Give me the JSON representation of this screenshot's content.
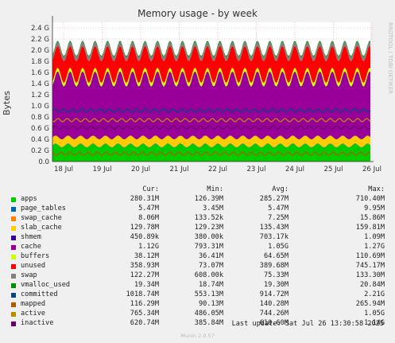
{
  "chart_data": {
    "type": "area",
    "title": "Memory usage - by week",
    "ylabel": "Bytes",
    "watermark": "RRDTOOL / TOBI OETIKER",
    "ylim": [
      0,
      2.5
    ],
    "y_unit": "G",
    "yticks": [
      {
        "value": 0.0,
        "label": "0.0"
      },
      {
        "value": 0.2,
        "label": "0.2 G"
      },
      {
        "value": 0.4,
        "label": "0.4 G"
      },
      {
        "value": 0.6,
        "label": "0.6 G"
      },
      {
        "value": 0.8,
        "label": "0.8 G"
      },
      {
        "value": 1.0,
        "label": "1.0 G"
      },
      {
        "value": 1.2,
        "label": "1.2 G"
      },
      {
        "value": 1.4,
        "label": "1.4 G"
      },
      {
        "value": 1.6,
        "label": "1.6 G"
      },
      {
        "value": 1.8,
        "label": "1.8 G"
      },
      {
        "value": 2.0,
        "label": "2.0 G"
      },
      {
        "value": 2.2,
        "label": "2.2 G"
      },
      {
        "value": 2.4,
        "label": "2.4 G"
      }
    ],
    "x_categories": [
      "18 Jul",
      "19 Jul",
      "20 Jul",
      "21 Jul",
      "22 Jul",
      "23 Jul",
      "24 Jul",
      "25 Jul",
      "26 Jul"
    ],
    "grid": true,
    "legend_position": "bottom",
    "legend_header": {
      "cur": "Cur:",
      "min": "Min:",
      "avg": "Avg:",
      "max": "Max:"
    },
    "series": [
      {
        "name": "apps",
        "color": "#00cc00",
        "cur": "280.31M",
        "min": "126.39M",
        "avg": "285.27M",
        "max": "710.40M",
        "avg_g": 0.285
      },
      {
        "name": "page_tables",
        "color": "#0066b3",
        "cur": "5.47M",
        "min": "3.45M",
        "avg": "5.47M",
        "max": "9.95M",
        "avg_g": 0.005
      },
      {
        "name": "swap_cache",
        "color": "#ff8000",
        "cur": "8.06M",
        "min": "133.52k",
        "avg": "7.25M",
        "max": "15.86M",
        "avg_g": 0.007
      },
      {
        "name": "slab_cache",
        "color": "#ffcc00",
        "cur": "129.78M",
        "min": "129.23M",
        "avg": "135.43M",
        "max": "159.81M",
        "avg_g": 0.135
      },
      {
        "name": "shmem",
        "color": "#330099",
        "cur": "450.89k",
        "min": "380.00k",
        "avg": "703.17k",
        "max": "1.09M",
        "avg_g": 0.001
      },
      {
        "name": "cache",
        "color": "#990099",
        "cur": "1.12G",
        "min": "793.31M",
        "avg": "1.05G",
        "max": "1.27G",
        "avg_g": 1.05
      },
      {
        "name": "buffers",
        "color": "#ccff00",
        "cur": "38.12M",
        "min": "36.41M",
        "avg": "64.65M",
        "max": "110.69M",
        "avg_g": 0.065
      },
      {
        "name": "unused",
        "color": "#ff0000",
        "cur": "358.93M",
        "min": "73.07M",
        "avg": "389.68M",
        "max": "745.17M",
        "avg_g": 0.39
      },
      {
        "name": "swap",
        "color": "#808080",
        "cur": "122.27M",
        "min": "608.00k",
        "avg": "75.33M",
        "max": "133.30M",
        "avg_g": 0.075
      },
      {
        "name": "vmalloc_used",
        "color": "#008f00",
        "cur": "19.34M",
        "min": "18.74M",
        "avg": "19.30M",
        "max": "20.84M",
        "avg_g": 0.019
      },
      {
        "name": "committed",
        "color": "#00487d",
        "cur": "1018.74M",
        "min": "553.13M",
        "avg": "914.72M",
        "max": "2.21G",
        "avg_g": 0.915
      },
      {
        "name": "mapped",
        "color": "#b35a00",
        "cur": "116.29M",
        "min": "90.13M",
        "avg": "140.28M",
        "max": "265.94M",
        "avg_g": 0.14
      },
      {
        "name": "active",
        "color": "#b38f00",
        "cur": "765.34M",
        "min": "486.05M",
        "avg": "744.26M",
        "max": "1.05G",
        "avg_g": 0.744
      },
      {
        "name": "inactive",
        "color": "#6b006b",
        "cur": "620.74M",
        "min": "385.84M",
        "avg": "610.60M",
        "max": "1.14G",
        "avg_g": 0.61
      }
    ]
  },
  "footer": {
    "last_update": "Last update: Sat Jul 26 13:30:58 2025",
    "munin": "Munin 2.0.57"
  }
}
